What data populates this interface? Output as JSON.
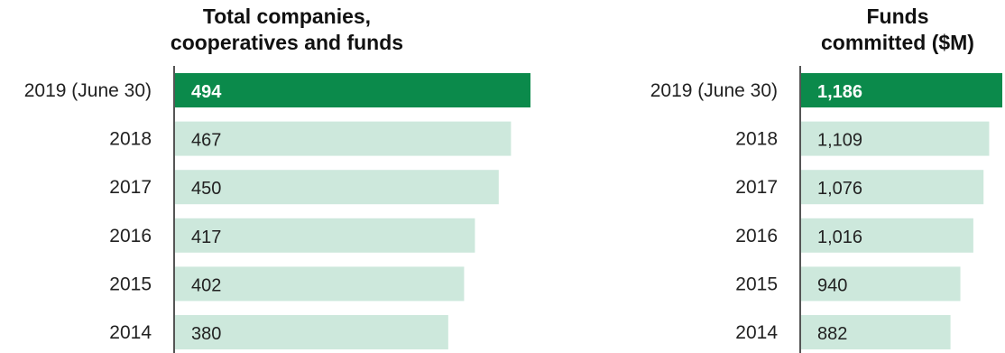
{
  "colors": {
    "highlight": "#0b8a4b",
    "bar": "#cde8dc",
    "highlight_text": "#ffffff",
    "text": "#222222"
  },
  "chart_data": [
    {
      "type": "bar",
      "orientation": "horizontal",
      "title": "Total companies, cooperatives and funds",
      "title_lines": [
        "Total companies,",
        "cooperatives and funds"
      ],
      "categories": [
        "2019 (June 30)",
        "2018",
        "2017",
        "2016",
        "2015",
        "2014"
      ],
      "values": [
        494,
        467,
        450,
        417,
        402,
        380
      ],
      "value_labels": [
        "494",
        "467",
        "450",
        "417",
        "402",
        "380"
      ],
      "highlighted_index": 0,
      "xlim": [
        0,
        494
      ],
      "grid": false,
      "legend": "none"
    },
    {
      "type": "bar",
      "orientation": "horizontal",
      "title": "Funds committed ($M)",
      "title_lines": [
        "Funds",
        "committed ($M)"
      ],
      "categories": [
        "2019 (June 30)",
        "2018",
        "2017",
        "2016",
        "2015",
        "2014"
      ],
      "values": [
        1186,
        1109,
        1076,
        1016,
        940,
        882
      ],
      "value_labels": [
        "1,186",
        "1,109",
        "1,076",
        "1,016",
        "940",
        "882"
      ],
      "highlighted_index": 0,
      "xlim": [
        0,
        1186
      ],
      "grid": false,
      "legend": "none"
    }
  ]
}
